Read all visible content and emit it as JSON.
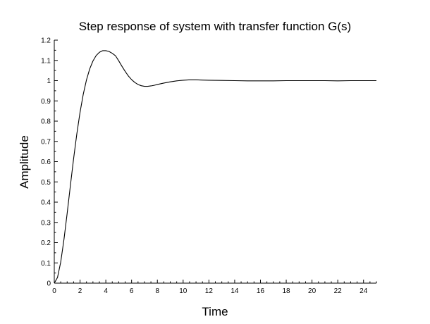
{
  "chart_data": {
    "type": "line",
    "title": "Step response of system with transfer function G(s)",
    "xlabel": "Time",
    "ylabel": "Amplitude",
    "xlim": [
      0,
      25
    ],
    "ylim": [
      0,
      1.2
    ],
    "xticks": [
      "0",
      "2",
      "4",
      "6",
      "8",
      "10",
      "12",
      "14",
      "16",
      "18",
      "20",
      "22",
      "24"
    ],
    "yticks": [
      "0",
      "0.1",
      "0.2",
      "0.3",
      "0.4",
      "0.5",
      "0.6",
      "0.7",
      "0.8",
      "0.9",
      "1",
      "1.1",
      "1.2"
    ],
    "grid": false,
    "legend": "none",
    "series": [
      {
        "color": "#000000",
        "x": [
          0,
          0.25,
          0.5,
          0.75,
          1,
          1.25,
          1.5,
          1.75,
          2,
          2.25,
          2.5,
          2.75,
          3,
          3.25,
          3.5,
          3.75,
          4,
          4.25,
          4.5,
          4.75,
          5,
          5.25,
          5.5,
          5.75,
          6,
          6.25,
          6.5,
          6.75,
          7,
          7.25,
          7.5,
          7.75,
          8,
          8.5,
          9,
          9.5,
          10,
          10.5,
          11,
          11.5,
          12,
          13,
          14,
          15,
          16,
          17,
          18,
          19,
          20,
          21,
          22,
          23,
          24,
          25
        ],
        "y": [
          0,
          0.028,
          0.104,
          0.215,
          0.345,
          0.482,
          0.615,
          0.737,
          0.844,
          0.933,
          1.004,
          1.058,
          1.097,
          1.124,
          1.14,
          1.148,
          1.148,
          1.144,
          1.135,
          1.123,
          1.098,
          1.071,
          1.046,
          1.023,
          1.005,
          0.991,
          0.981,
          0.975,
          0.972,
          0.972,
          0.974,
          0.977,
          0.981,
          0.988,
          0.994,
          0.999,
          1.002,
          1.004,
          1.004,
          1.003,
          1.002,
          1.001,
          1.0,
          0.999,
          0.999,
          0.999,
          1.0,
          1.0,
          1.0,
          1.0,
          0.999,
          1.0,
          1.0,
          1.0
        ]
      }
    ]
  }
}
